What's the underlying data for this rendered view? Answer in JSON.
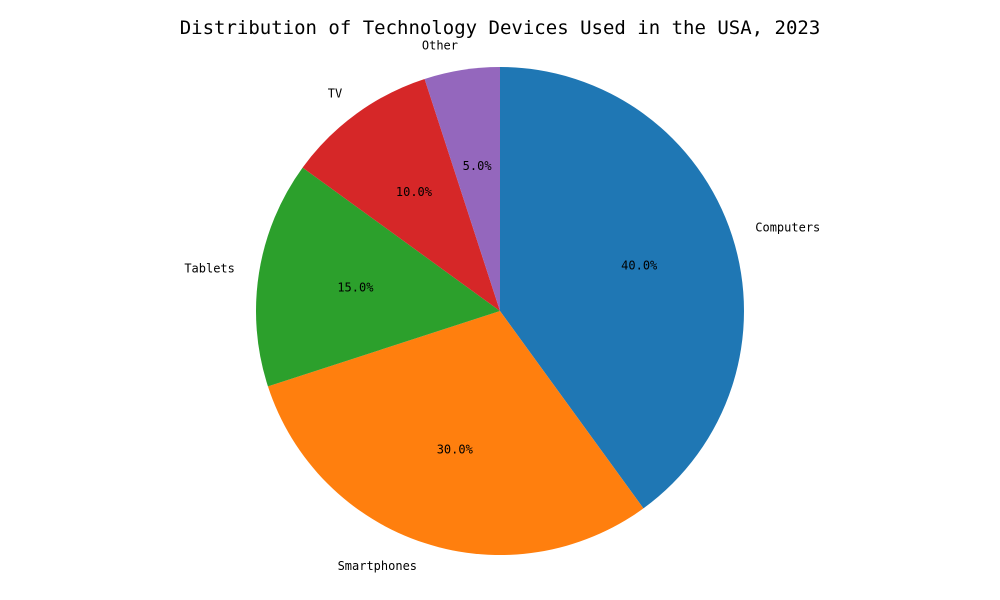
{
  "chart_data": {
    "type": "pie",
    "title": "Distribution of Technology Devices Used in the USA, 2023",
    "start_angle_deg": 90,
    "direction": "clockwise",
    "slices": [
      {
        "label": "Computers",
        "value": 40,
        "pct_label": "40.0%",
        "color": "#1f77b4"
      },
      {
        "label": "Smartphones",
        "value": 30,
        "pct_label": "30.0%",
        "color": "#ff7f0e"
      },
      {
        "label": "Tablets",
        "value": 15,
        "pct_label": "15.0%",
        "color": "#2ca02c"
      },
      {
        "label": "TV",
        "value": 10,
        "pct_label": "10.0%",
        "color": "#d62728"
      },
      {
        "label": "Other",
        "value": 5,
        "pct_label": "5.0%",
        "color": "#9467bd"
      }
    ]
  }
}
